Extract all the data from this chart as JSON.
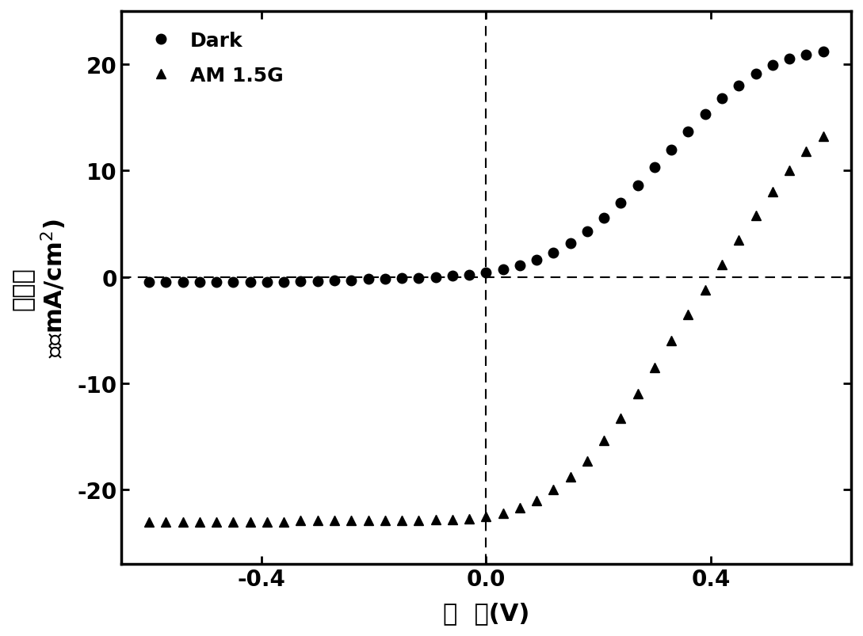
{
  "dark_voltage": [
    -0.6,
    -0.57,
    -0.54,
    -0.51,
    -0.48,
    -0.45,
    -0.42,
    -0.39,
    -0.36,
    -0.33,
    -0.3,
    -0.27,
    -0.24,
    -0.21,
    -0.18,
    -0.15,
    -0.12,
    -0.09,
    -0.06,
    -0.03,
    0.0,
    0.03,
    0.06,
    0.09,
    0.12,
    0.15,
    0.18,
    0.21,
    0.24,
    0.27,
    0.3,
    0.33,
    0.36,
    0.39,
    0.42,
    0.45,
    0.48,
    0.51,
    0.54,
    0.57,
    0.6
  ],
  "dark_current": [
    -0.5,
    -0.5,
    -0.5,
    -0.5,
    -0.5,
    -0.5,
    -0.5,
    -0.5,
    -0.5,
    -0.4,
    -0.4,
    -0.3,
    -0.3,
    -0.2,
    -0.2,
    -0.1,
    -0.1,
    0.0,
    0.1,
    0.2,
    0.4,
    0.7,
    1.1,
    1.6,
    2.3,
    3.2,
    4.3,
    5.6,
    7.0,
    8.6,
    10.3,
    12.0,
    13.7,
    15.3,
    16.8,
    18.0,
    19.1,
    19.9,
    20.5,
    20.9,
    21.2
  ],
  "am_voltage": [
    -0.6,
    -0.57,
    -0.54,
    -0.51,
    -0.48,
    -0.45,
    -0.42,
    -0.39,
    -0.36,
    -0.33,
    -0.3,
    -0.27,
    -0.24,
    -0.21,
    -0.18,
    -0.15,
    -0.12,
    -0.09,
    -0.06,
    -0.03,
    0.0,
    0.03,
    0.06,
    0.09,
    0.12,
    0.15,
    0.18,
    0.21,
    0.24,
    0.27,
    0.3,
    0.33,
    0.36,
    0.39,
    0.42,
    0.45,
    0.48,
    0.51,
    0.54,
    0.57,
    0.6
  ],
  "am_current": [
    -23.0,
    -23.0,
    -23.0,
    -23.0,
    -23.0,
    -23.0,
    -23.0,
    -23.0,
    -23.0,
    -22.9,
    -22.9,
    -22.9,
    -22.9,
    -22.9,
    -22.9,
    -22.9,
    -22.9,
    -22.8,
    -22.8,
    -22.7,
    -22.5,
    -22.2,
    -21.7,
    -21.0,
    -20.0,
    -18.8,
    -17.3,
    -15.4,
    -13.3,
    -11.0,
    -8.5,
    -6.0,
    -3.5,
    -1.2,
    1.2,
    3.5,
    5.8,
    8.0,
    10.0,
    11.8,
    13.2
  ],
  "xlim": [
    -0.65,
    0.65
  ],
  "ylim": [
    -27,
    25
  ],
  "yticks": [
    -20,
    -10,
    0,
    10,
    20
  ],
  "xticks": [
    -0.4,
    0.0,
    0.4
  ],
  "xtick_labels": [
    "-0.4",
    "0.0",
    "0.4"
  ],
  "legend_dark": "Dark",
  "legend_am": "AM 1.5G",
  "marker_color": "#000000",
  "background_color": "white",
  "dashed_line_color": "black",
  "fontsize_label": 22,
  "fontsize_tick": 20,
  "fontsize_legend": 18,
  "xlabel_cn": "电  压(V)",
  "ylabel_cn_top": "电流密",
  "ylabel_cn_bot": "度（mA/cm",
  "marker_size": 9
}
